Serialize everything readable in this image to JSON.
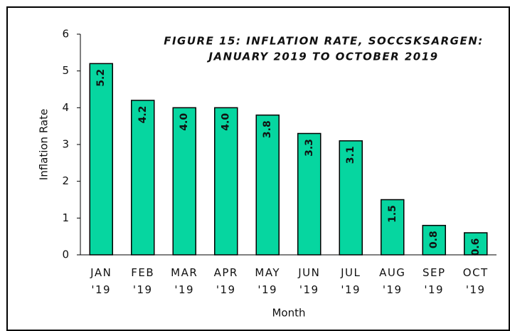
{
  "chart_data": {
    "type": "bar",
    "title": [
      "FIGURE 15: INFLATION RATE, SOCCSKSARGEN:",
      "JANUARY 2019 TO OCTOBER 2019"
    ],
    "x_label": "Month",
    "y_label": "Inflation Rate",
    "categories": [
      "JAN '19",
      "FEB '19",
      "MAR '19",
      "APR '19",
      "MAY '19",
      "JUN '19",
      "JUL '19",
      "AUG '19",
      "SEP '19",
      "OCT '19"
    ],
    "values": [
      5.2,
      4.2,
      4.0,
      4.0,
      3.8,
      3.3,
      3.1,
      1.5,
      0.8,
      0.6
    ],
    "value_labels": [
      "5.2",
      "4.2",
      "4.0",
      "4.0",
      "3.8",
      "3.3",
      "3.1",
      "1.5",
      "0.8",
      "0.6"
    ],
    "color": "#06d6a0",
    "ylim": [
      0,
      6
    ],
    "yticks": [
      0,
      1,
      2,
      3,
      4,
      5,
      6
    ],
    "grid": false
  }
}
